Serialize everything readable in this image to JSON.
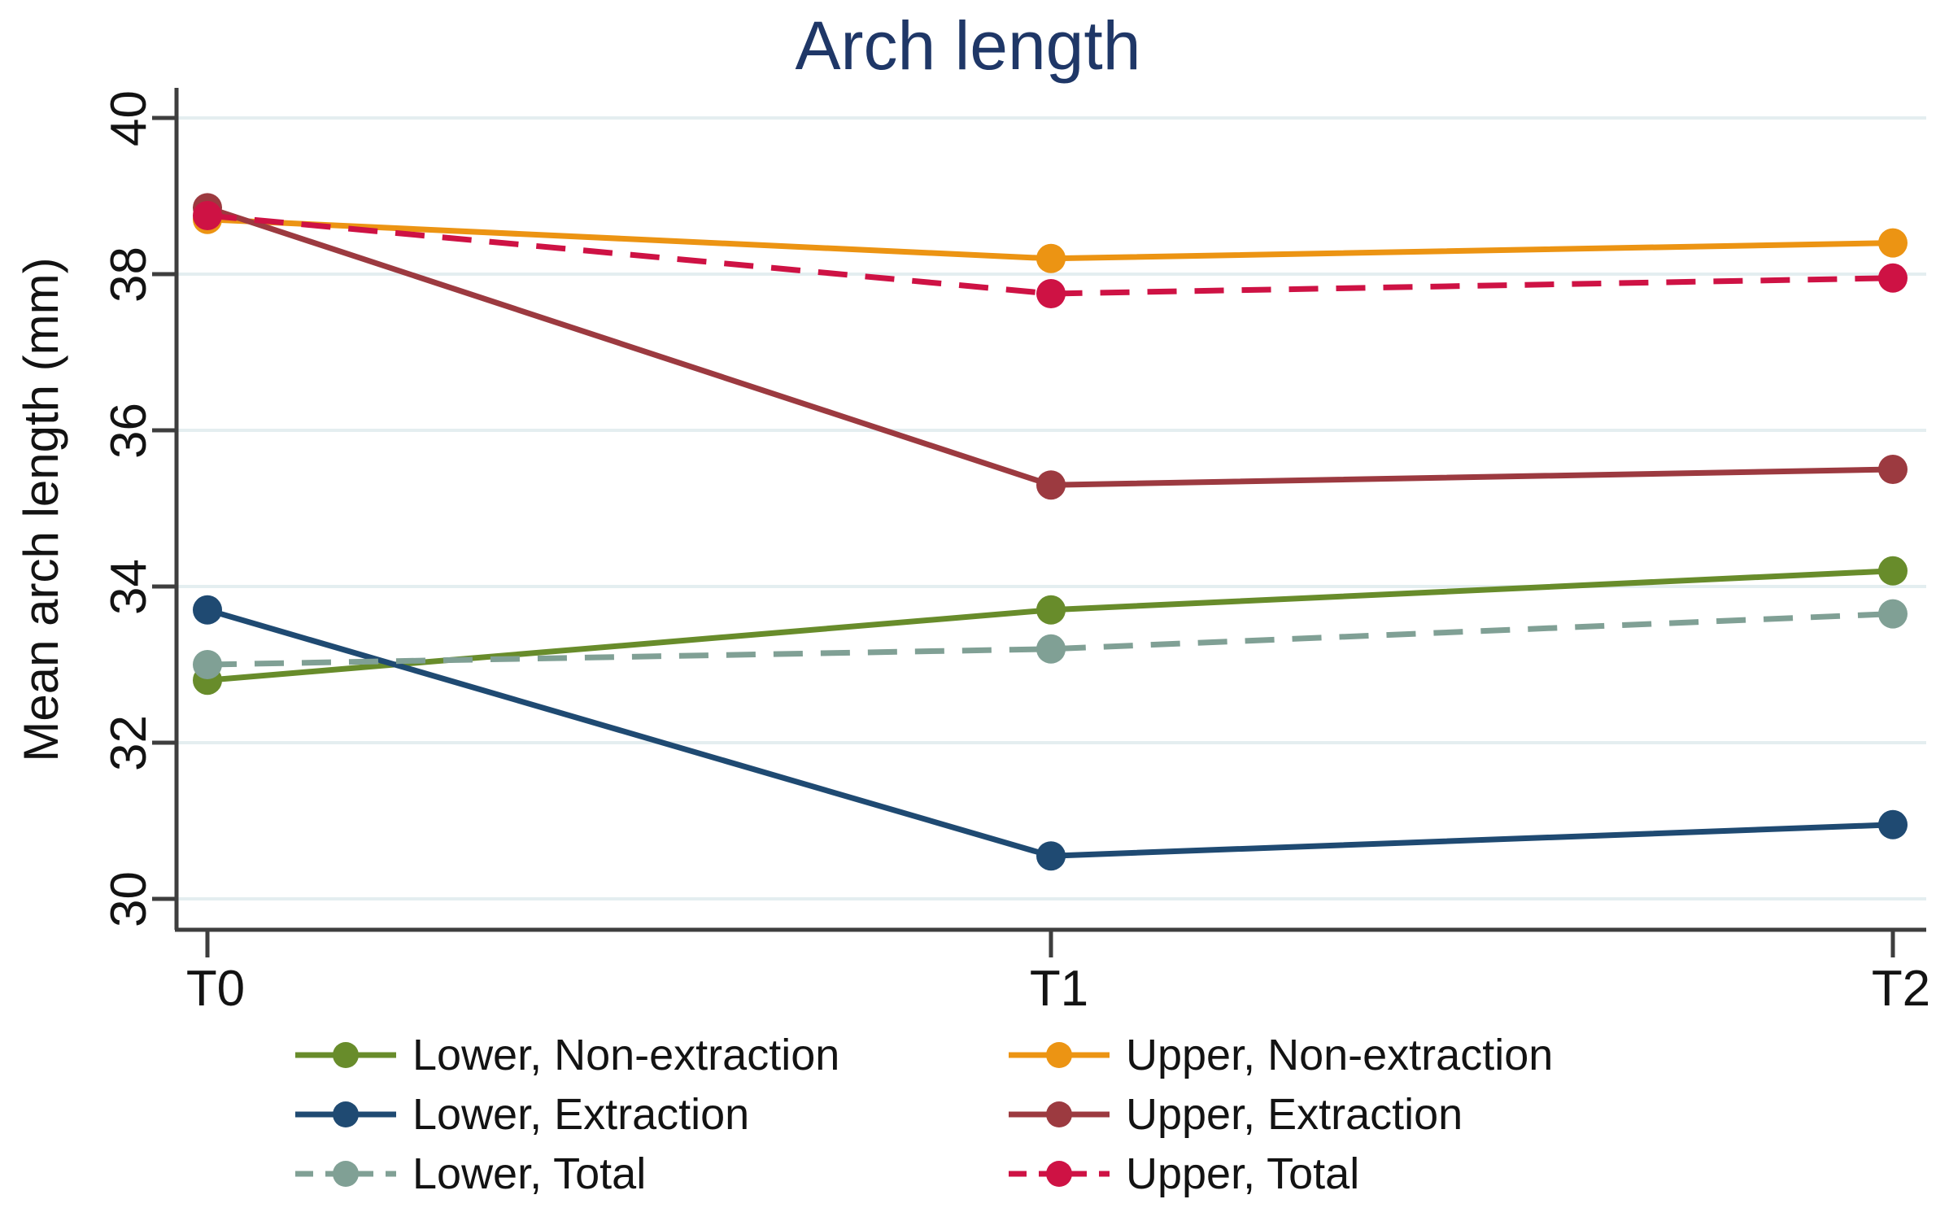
{
  "figure": {
    "title": "Arch length",
    "title_color": "#1f3767"
  },
  "chart_data": {
    "type": "line",
    "title": "Arch length",
    "categories": [
      "T0",
      "T1",
      "T2"
    ],
    "xlabel": "",
    "ylabel": "Mean arch length (mm)",
    "ylim": [
      29.6,
      40.4
    ],
    "yticks": [
      30,
      32,
      34,
      36,
      38,
      40
    ],
    "grid": "horizontal",
    "legend_position": "bottom",
    "series": [
      {
        "name": "Lower, Non-extraction",
        "color": "#688c2b",
        "line_style": "solid",
        "marker": "circle",
        "values": [
          32.8,
          33.7,
          34.2
        ]
      },
      {
        "name": "Lower, Extraction",
        "color": "#1f4a72",
        "line_style": "solid",
        "marker": "circle",
        "values": [
          33.7,
          30.55,
          30.95
        ]
      },
      {
        "name": "Lower, Total",
        "color": "#80a095",
        "line_style": "dashed",
        "marker": "circle",
        "values": [
          33.0,
          33.2,
          33.65
        ]
      },
      {
        "name": "Upper, Non-extraction",
        "color": "#ec9413",
        "line_style": "solid",
        "marker": "circle",
        "values": [
          38.7,
          38.2,
          38.4
        ]
      },
      {
        "name": "Upper, Extraction",
        "color": "#9c3a40",
        "line_style": "solid",
        "marker": "circle",
        "values": [
          38.85,
          35.3,
          35.5
        ]
      },
      {
        "name": "Upper, Total",
        "color": "#ce1244",
        "line_style": "dashed",
        "marker": "circle",
        "values": [
          38.75,
          37.75,
          37.95
        ]
      }
    ],
    "legend_columns": [
      [
        "Lower, Non-extraction",
        "Lower, Extraction",
        "Lower, Total"
      ],
      [
        "Upper, Non-extraction",
        "Upper, Extraction",
        "Upper, Total"
      ]
    ]
  },
  "colors": {
    "grid": "#e4eef0",
    "axis": "#3e3e3e",
    "tick_label": "#131313",
    "legend_text": "#131313"
  }
}
